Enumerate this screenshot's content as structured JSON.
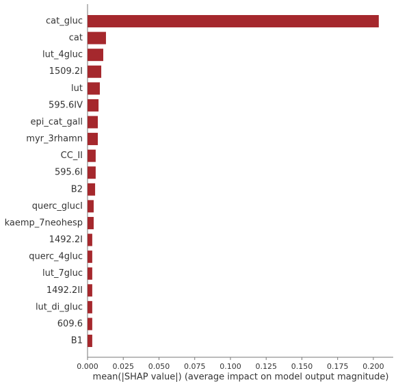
{
  "chart_data": {
    "type": "bar",
    "orientation": "horizontal",
    "categories": [
      "cat_gluc",
      "cat",
      "lut_4gluc",
      "1509.2I",
      "lut",
      "595.6IV",
      "epi_cat_gall",
      "myr_3rhamn",
      "CC_II",
      "595.6I",
      "B2",
      "querc_glucI",
      "kaemp_7neohesp",
      "1492.2I",
      "querc_4gluc",
      "lut_7gluc",
      "1492.2II",
      "lut_di_gluc",
      "609.6",
      "B1"
    ],
    "values": [
      0.2038,
      0.0129,
      0.011,
      0.0096,
      0.0086,
      0.0077,
      0.0072,
      0.0072,
      0.0057,
      0.0057,
      0.0053,
      0.0043,
      0.0043,
      0.0033,
      0.0033,
      0.0033,
      0.0033,
      0.0033,
      0.0033,
      0.0033
    ],
    "color": "#a5282d",
    "xlabel": "mean(|SHAP value|) (average impact on model output magnitude)",
    "xlim": [
      0,
      0.2139
    ],
    "xticks": [
      {
        "value": 0,
        "label": "0.000"
      },
      {
        "value": 0.025,
        "label": "0.025"
      },
      {
        "value": 0.05,
        "label": "0.050"
      },
      {
        "value": 0.075,
        "label": "0.075"
      },
      {
        "value": 0.1,
        "label": "0.100"
      },
      {
        "value": 0.125,
        "label": "0.125"
      },
      {
        "value": 0.15,
        "label": "0.150"
      },
      {
        "value": 0.175,
        "label": "0.175"
      },
      {
        "value": 0.2,
        "label": "0.200"
      }
    ]
  }
}
